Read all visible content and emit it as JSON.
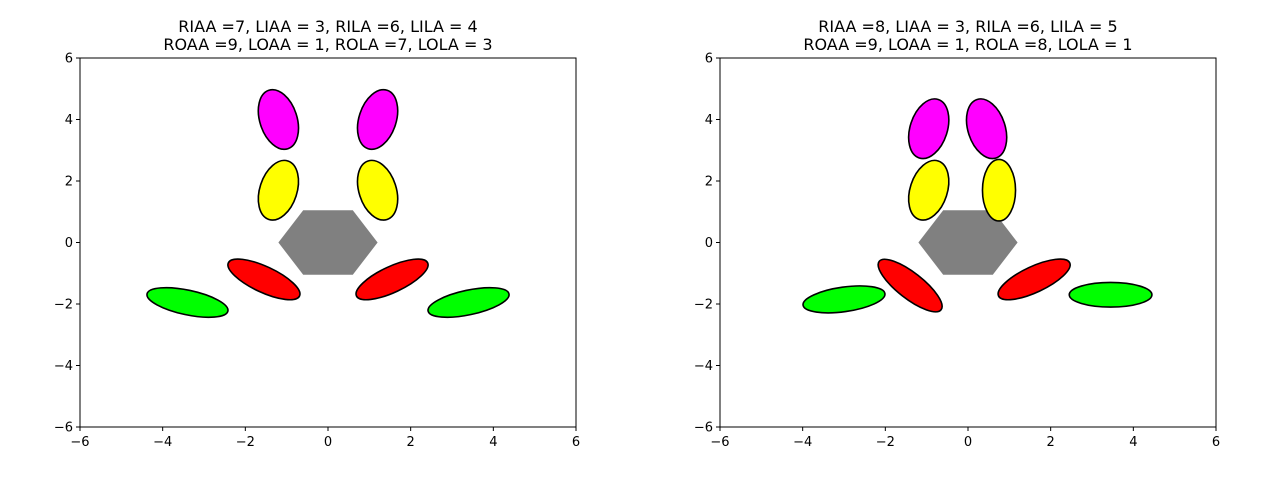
{
  "panels": [
    {
      "title_lines": [
        "RIAA =7, LIAA = 3, RILA =6, LILA = 4",
        "ROAA =9, LOAA = 1, ROLA =7, LOLA = 3"
      ],
      "xlim": [
        -6,
        6
      ],
      "ylim": [
        -6,
        6
      ],
      "xticks": [
        "−6",
        "−4",
        "−2",
        "0",
        "2",
        "4",
        "6"
      ],
      "yticks": [
        "−6",
        "−4",
        "−2",
        "0",
        "2",
        "4",
        "6"
      ],
      "hexagon": {
        "center": [
          0,
          0
        ],
        "color": "#808080"
      },
      "ellipses": [
        {
          "name": "upper-left-magenta",
          "cx": -1.2,
          "cy": 4.0,
          "rx": 0.45,
          "ry": 1.0,
          "rot": -18,
          "color": "#ff00ff"
        },
        {
          "name": "upper-right-magenta",
          "cx": 1.2,
          "cy": 4.0,
          "rx": 0.45,
          "ry": 1.0,
          "rot": 18,
          "color": "#ff00ff"
        },
        {
          "name": "upper-left-yellow",
          "cx": -1.2,
          "cy": 1.7,
          "rx": 0.45,
          "ry": 1.0,
          "rot": 18,
          "color": "#ffff00"
        },
        {
          "name": "upper-right-yellow",
          "cx": 1.2,
          "cy": 1.7,
          "rx": 0.45,
          "ry": 1.0,
          "rot": -18,
          "color": "#ffff00"
        },
        {
          "name": "lower-left-red",
          "cx": -1.55,
          "cy": -1.2,
          "rx": 0.95,
          "ry": 0.42,
          "rot": 25,
          "color": "#ff0000"
        },
        {
          "name": "lower-right-red",
          "cx": 1.55,
          "cy": -1.2,
          "rx": 0.95,
          "ry": 0.42,
          "rot": -25,
          "color": "#ff0000"
        },
        {
          "name": "lower-left-green",
          "cx": -3.4,
          "cy": -1.95,
          "rx": 1.0,
          "ry": 0.4,
          "rot": 12,
          "color": "#00ff00"
        },
        {
          "name": "lower-right-green",
          "cx": 3.4,
          "cy": -1.95,
          "rx": 1.0,
          "ry": 0.4,
          "rot": -12,
          "color": "#00ff00"
        }
      ]
    },
    {
      "title_lines": [
        "RIAA =8, LIAA = 3, RILA =6, LILA = 5",
        "ROAA =9, LOAA = 1, ROLA =8, LOLA = 1"
      ],
      "xlim": [
        -6,
        6
      ],
      "ylim": [
        -6,
        6
      ],
      "xticks": [
        "−6",
        "−4",
        "−2",
        "0",
        "2",
        "4",
        "6"
      ],
      "yticks": [
        "−6",
        "−4",
        "−2",
        "0",
        "2",
        "4",
        "6"
      ],
      "hexagon": {
        "center": [
          0,
          0
        ],
        "color": "#808080"
      },
      "ellipses": [
        {
          "name": "upper-left-magenta",
          "cx": -0.95,
          "cy": 3.7,
          "rx": 0.45,
          "ry": 1.0,
          "rot": 18,
          "color": "#ff00ff"
        },
        {
          "name": "upper-right-magenta",
          "cx": 0.45,
          "cy": 3.7,
          "rx": 0.45,
          "ry": 1.0,
          "rot": -18,
          "color": "#ff00ff"
        },
        {
          "name": "upper-left-yellow",
          "cx": -0.95,
          "cy": 1.7,
          "rx": 0.45,
          "ry": 1.0,
          "rot": 18,
          "color": "#ffff00"
        },
        {
          "name": "upper-right-yellow",
          "cx": 0.75,
          "cy": 1.7,
          "rx": 0.4,
          "ry": 1.0,
          "rot": 0,
          "color": "#ffff00"
        },
        {
          "name": "lower-left-red",
          "cx": -1.4,
          "cy": -1.4,
          "rx": 0.95,
          "ry": 0.42,
          "rot": 38,
          "color": "#ff0000"
        },
        {
          "name": "lower-right-red",
          "cx": 1.6,
          "cy": -1.2,
          "rx": 0.95,
          "ry": 0.42,
          "rot": -25,
          "color": "#ff0000"
        },
        {
          "name": "lower-left-green",
          "cx": -3.0,
          "cy": -1.85,
          "rx": 1.0,
          "ry": 0.4,
          "rot": -8,
          "color": "#00ff00"
        },
        {
          "name": "lower-right-green",
          "cx": 3.45,
          "cy": -1.7,
          "rx": 1.0,
          "ry": 0.4,
          "rot": 0,
          "color": "#00ff00"
        }
      ]
    }
  ]
}
